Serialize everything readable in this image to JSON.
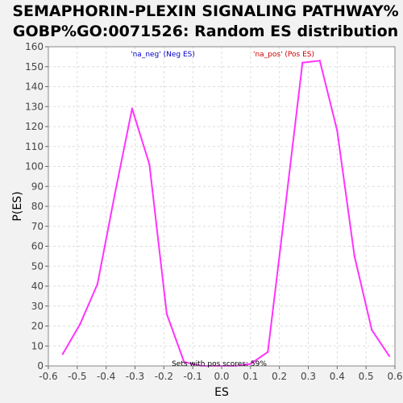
{
  "chart_data": {
    "type": "line",
    "title_lines": [
      "SEMAPHORIN-PLEXIN SIGNALING PATHWAY%",
      "GOBP%GO:0071526: Random ES distribution"
    ],
    "xlabel": "ES",
    "ylabel": "P(ES)",
    "xlim": [
      -0.6,
      0.6
    ],
    "ylim": [
      0,
      160
    ],
    "xticks": [
      -0.6,
      -0.5,
      -0.4,
      -0.3,
      -0.2,
      -0.1,
      0.0,
      0.1,
      0.2,
      0.3,
      0.4,
      0.5,
      0.6
    ],
    "xtick_labels": [
      "-0.6",
      "-0.5",
      "-0.4",
      "-0.3",
      "-0.2",
      "-0.1",
      "0.0",
      "0.1",
      "0.2",
      "0.3",
      "0.4",
      "0.5",
      "0.6"
    ],
    "yticks": [
      0,
      10,
      20,
      30,
      40,
      50,
      60,
      70,
      80,
      90,
      100,
      110,
      120,
      130,
      140,
      150,
      160
    ],
    "ytick_labels": [
      "0",
      "10",
      "20",
      "30",
      "40",
      "50",
      "60",
      "70",
      "80",
      "90",
      "100",
      "110",
      "120",
      "130",
      "140",
      "150",
      "160"
    ],
    "grid": true,
    "line_color": "#ff33ff",
    "series": [
      {
        "x": [
          -0.55,
          -0.49,
          -0.43,
          -0.37,
          -0.31,
          -0.25,
          -0.19,
          -0.13,
          -0.07,
          -0.01,
          0.05,
          0.1,
          0.16,
          0.22,
          0.28,
          0.34,
          0.4,
          0.46,
          0.52,
          0.58
        ],
        "y": [
          6,
          21,
          41,
          86,
          129,
          101,
          26,
          2,
          0,
          0,
          0,
          1,
          7,
          79,
          152,
          153,
          118,
          55,
          18,
          5
        ]
      }
    ],
    "annotations": {
      "neg_label": "'na_neg' (Neg ES)",
      "neg_color": "#0000cc",
      "pos_label": "'na_pos' (Pos ES)",
      "pos_color": "#cc0000",
      "pos_scores": "Sets with pos scores: 59%"
    }
  }
}
